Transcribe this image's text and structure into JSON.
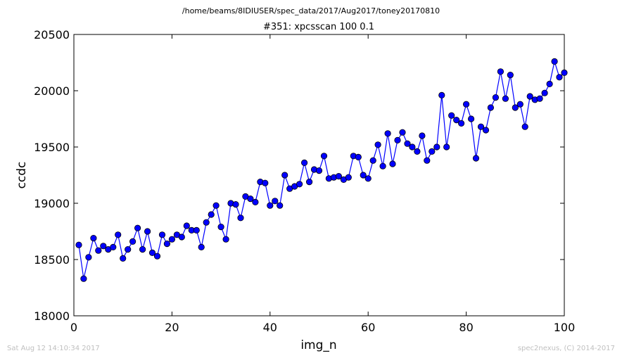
{
  "header": {
    "path": "/home/beams/8IDIUSER/spec_data/2017/Aug2017/toney20170810",
    "title": "#351: xpcsscan 100 0.1"
  },
  "footer": {
    "timestamp": "Sat Aug 12 14:10:34 2017",
    "credit": "spec2nexus, (C) 2014-2017"
  },
  "colors": {
    "series": "#0000ff",
    "marker_edge": "#000000"
  },
  "chart_data": {
    "type": "line",
    "title": "#351: xpcsscan 100 0.1",
    "xlabel": "img_n",
    "ylabel": "ccdc",
    "xlim": [
      0,
      100
    ],
    "ylim": [
      18000,
      20500
    ],
    "x_ticks": [
      0,
      20,
      40,
      60,
      80,
      100
    ],
    "y_ticks": [
      18000,
      18500,
      19000,
      19500,
      20000,
      20500
    ],
    "grid": false,
    "legend": "none",
    "markers": "circle",
    "series": [
      {
        "x": [
          1,
          2,
          3,
          4,
          5,
          6,
          7,
          8,
          9,
          10,
          11,
          12,
          13,
          14,
          15,
          16,
          17,
          18,
          19,
          20,
          21,
          22,
          23,
          24,
          25,
          26,
          27,
          28,
          29,
          30,
          31,
          32,
          33,
          34,
          35,
          36,
          37,
          38,
          39,
          40,
          41,
          42,
          43,
          44,
          45,
          46,
          47,
          48,
          49,
          50,
          51,
          52,
          53,
          54,
          55,
          56,
          57,
          58,
          59,
          60,
          61,
          62,
          63,
          64,
          65,
          66,
          67,
          68,
          69,
          70,
          71,
          72,
          73,
          74,
          75,
          76,
          77,
          78,
          79,
          80,
          81,
          82,
          83,
          84,
          85,
          86,
          87,
          88,
          89,
          90,
          91,
          92,
          93,
          94,
          95,
          96,
          97,
          98,
          99,
          100
        ],
        "y": [
          18630,
          18330,
          18520,
          18690,
          18580,
          18620,
          18590,
          18610,
          18720,
          18510,
          18590,
          18660,
          18780,
          18590,
          18750,
          18560,
          18530,
          18720,
          18640,
          18680,
          18720,
          18700,
          18800,
          18760,
          18760,
          18610,
          18830,
          18900,
          18980,
          18790,
          18680,
          19000,
          18990,
          18870,
          19060,
          19040,
          19010,
          19190,
          19180,
          18980,
          19020,
          18980,
          19250,
          19130,
          19150,
          19170,
          19360,
          19190,
          19300,
          19290,
          19420,
          19220,
          19230,
          19240,
          19210,
          19230,
          19420,
          19410,
          19250,
          19220,
          19380,
          19520,
          19330,
          19620,
          19350,
          19560,
          19630,
          19530,
          19500,
          19460,
          19600,
          19380,
          19460,
          19500,
          19960,
          19500,
          19780,
          19740,
          19710,
          19880,
          19750,
          19400,
          19680,
          19650,
          19850,
          19940,
          20170,
          19930,
          20140,
          19850,
          19880,
          19680,
          19950,
          19920,
          19930,
          19980,
          20060,
          20260,
          20120,
          20160
        ]
      }
    ]
  }
}
